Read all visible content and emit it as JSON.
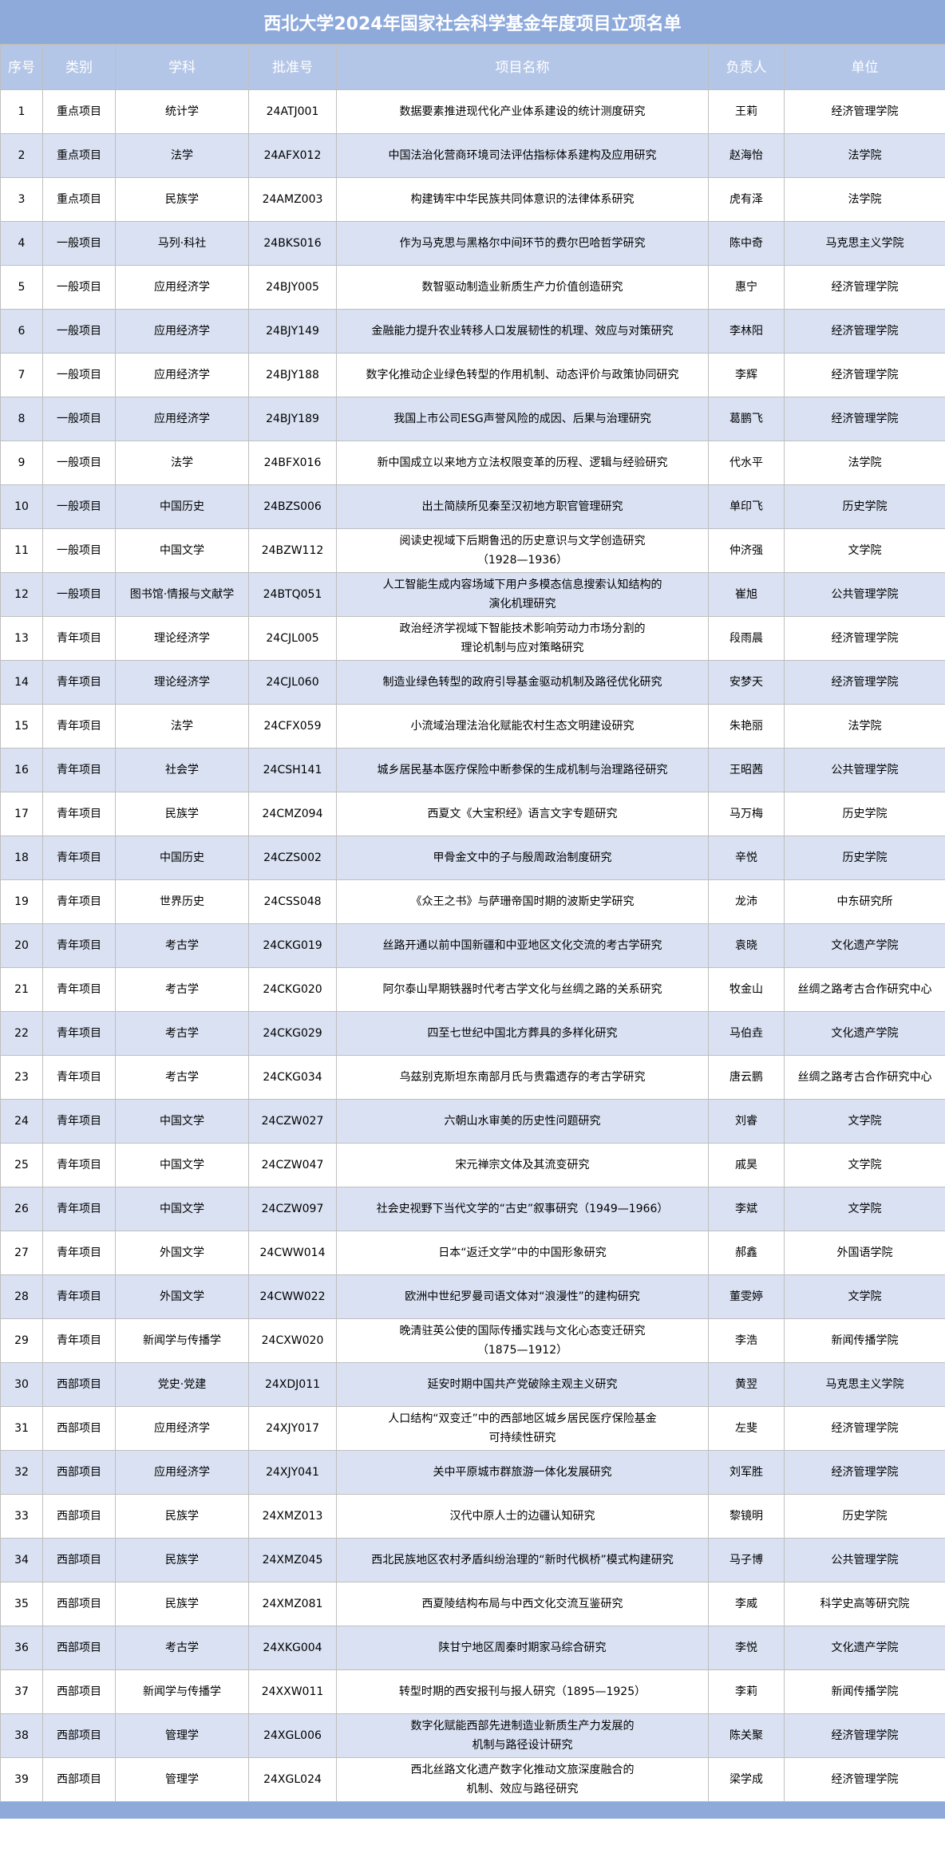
{
  "title": "西北大学2024年国家社会科学基金年度项目立项名单",
  "columns": [
    "序号",
    "类别",
    "学科",
    "批准号",
    "项目名称",
    "负责人",
    "单位"
  ],
  "colors": {
    "title_bg": "#8eaadb",
    "header_bg": "#b4c6e7",
    "alt_row_bg": "#d9e1f2",
    "border": "#bfbfbf"
  },
  "rows": [
    [
      "1",
      "重点项目",
      "统计学",
      "24ATJ001",
      "数据要素推进现代化产业体系建设的统计测度研究",
      "王莉",
      "经济管理学院"
    ],
    [
      "2",
      "重点项目",
      "法学",
      "24AFX012",
      "中国法治化营商环境司法评估指标体系建构及应用研究",
      "赵海怡",
      "法学院"
    ],
    [
      "3",
      "重点项目",
      "民族学",
      "24AMZ003",
      "构建铸牢中华民族共同体意识的法律体系研究",
      "虎有泽",
      "法学院"
    ],
    [
      "4",
      "一般项目",
      "马列·科社",
      "24BKS016",
      "作为马克思与黑格尔中间环节的费尔巴哈哲学研究",
      "陈中奇",
      "马克思主义学院"
    ],
    [
      "5",
      "一般项目",
      "应用经济学",
      "24BJY005",
      "数智驱动制造业新质生产力价值创造研究",
      "惠宁",
      "经济管理学院"
    ],
    [
      "6",
      "一般项目",
      "应用经济学",
      "24BJY149",
      "金融能力提升农业转移人口发展韧性的机理、效应与对策研究",
      "李林阳",
      "经济管理学院"
    ],
    [
      "7",
      "一般项目",
      "应用经济学",
      "24BJY188",
      "数字化推动企业绿色转型的作用机制、动态评价与政策协同研究",
      "李辉",
      "经济管理学院"
    ],
    [
      "8",
      "一般项目",
      "应用经济学",
      "24BJY189",
      "我国上市公司ESG声誉风险的成因、后果与治理研究",
      "葛鹏飞",
      "经济管理学院"
    ],
    [
      "9",
      "一般项目",
      "法学",
      "24BFX016",
      "新中国成立以来地方立法权限变革的历程、逻辑与经验研究",
      "代水平",
      "法学院"
    ],
    [
      "10",
      "一般项目",
      "中国历史",
      "24BZS006",
      "出土简牍所见秦至汉初地方职官管理研究",
      "单印飞",
      "历史学院"
    ],
    [
      "11",
      "一般项目",
      "中国文学",
      "24BZW112",
      "阅读史视域下后期鲁迅的历史意识与文学创造研究\n（1928—1936）",
      "仲济强",
      "文学院"
    ],
    [
      "12",
      "一般项目",
      "图书馆·情报与文献学",
      "24BTQ051",
      "人工智能生成内容场域下用户多模态信息搜索认知结构的\n演化机理研究",
      "崔旭",
      "公共管理学院"
    ],
    [
      "13",
      "青年项目",
      "理论经济学",
      "24CJL005",
      "政治经济学视域下智能技术影响劳动力市场分割的\n理论机制与应对策略研究",
      "段雨晨",
      "经济管理学院"
    ],
    [
      "14",
      "青年项目",
      "理论经济学",
      "24CJL060",
      "制造业绿色转型的政府引导基金驱动机制及路径优化研究",
      "安梦天",
      "经济管理学院"
    ],
    [
      "15",
      "青年项目",
      "法学",
      "24CFX059",
      "小流域治理法治化赋能农村生态文明建设研究",
      "朱艳丽",
      "法学院"
    ],
    [
      "16",
      "青年项目",
      "社会学",
      "24CSH141",
      "城乡居民基本医疗保险中断参保的生成机制与治理路径研究",
      "王昭茜",
      "公共管理学院"
    ],
    [
      "17",
      "青年项目",
      "民族学",
      "24CMZ094",
      "西夏文《大宝积经》语言文字专题研究",
      "马万梅",
      "历史学院"
    ],
    [
      "18",
      "青年项目",
      "中国历史",
      "24CZS002",
      "甲骨金文中的子与殷周政治制度研究",
      "辛悦",
      "历史学院"
    ],
    [
      "19",
      "青年项目",
      "世界历史",
      "24CSS048",
      "《众王之书》与萨珊帝国时期的波斯史学研究",
      "龙沛",
      "中东研究所"
    ],
    [
      "20",
      "青年项目",
      "考古学",
      "24CKG019",
      "丝路开通以前中国新疆和中亚地区文化交流的考古学研究",
      "袁晓",
      "文化遗产学院"
    ],
    [
      "21",
      "青年项目",
      "考古学",
      "24CKG020",
      "阿尔泰山早期铁器时代考古学文化与丝绸之路的关系研究",
      "牧金山",
      "丝绸之路考古合作研究中心"
    ],
    [
      "22",
      "青年项目",
      "考古学",
      "24CKG029",
      "四至七世纪中国北方葬具的多样化研究",
      "马伯垚",
      "文化遗产学院"
    ],
    [
      "23",
      "青年项目",
      "考古学",
      "24CKG034",
      "乌兹别克斯坦东南部月氏与贵霜遗存的考古学研究",
      "唐云鹏",
      "丝绸之路考古合作研究中心"
    ],
    [
      "24",
      "青年项目",
      "中国文学",
      "24CZW027",
      "六朝山水审美的历史性问题研究",
      "刘睿",
      "文学院"
    ],
    [
      "25",
      "青年项目",
      "中国文学",
      "24CZW047",
      "宋元禅宗文体及其流变研究",
      "戚昊",
      "文学院"
    ],
    [
      "26",
      "青年项目",
      "中国文学",
      "24CZW097",
      "社会史视野下当代文学的“古史”叙事研究（1949—1966）",
      "李斌",
      "文学院"
    ],
    [
      "27",
      "青年项目",
      "外国文学",
      "24CWW014",
      "日本“返迁文学”中的中国形象研究",
      "郝鑫",
      "外国语学院"
    ],
    [
      "28",
      "青年项目",
      "外国文学",
      "24CWW022",
      "欧洲中世纪罗曼司语文体对“浪漫性”的建构研究",
      "董雯婷",
      "文学院"
    ],
    [
      "29",
      "青年项目",
      "新闻学与传播学",
      "24CXW020",
      "晚清驻英公使的国际传播实践与文化心态变迁研究\n（1875—1912）",
      "李浩",
      "新闻传播学院"
    ],
    [
      "30",
      "西部项目",
      "党史·党建",
      "24XDJ011",
      "延安时期中国共产党破除主观主义研究",
      "黄翌",
      "马克思主义学院"
    ],
    [
      "31",
      "西部项目",
      "应用经济学",
      "24XJY017",
      "人口结构“双变迁”中的西部地区城乡居民医疗保险基金\n可持续性研究",
      "左斐",
      "经济管理学院"
    ],
    [
      "32",
      "西部项目",
      "应用经济学",
      "24XJY041",
      "关中平原城市群旅游一体化发展研究",
      "刘军胜",
      "经济管理学院"
    ],
    [
      "33",
      "西部项目",
      "民族学",
      "24XMZ013",
      "汉代中原人士的边疆认知研究",
      "黎镜明",
      "历史学院"
    ],
    [
      "34",
      "西部项目",
      "民族学",
      "24XMZ045",
      "西北民族地区农村矛盾纠纷治理的“新时代枫桥”模式构建研究",
      "马子博",
      "公共管理学院"
    ],
    [
      "35",
      "西部项目",
      "民族学",
      "24XMZ081",
      "西夏陵结构布局与中西文化交流互鉴研究",
      "李威",
      "科学史高等研究院"
    ],
    [
      "36",
      "西部项目",
      "考古学",
      "24XKG004",
      "陕甘宁地区周秦时期家马综合研究",
      "李悦",
      "文化遗产学院"
    ],
    [
      "37",
      "西部项目",
      "新闻学与传播学",
      "24XXW011",
      "转型时期的西安报刊与报人研究（1895—1925）",
      "李莉",
      "新闻传播学院"
    ],
    [
      "38",
      "西部项目",
      "管理学",
      "24XGL006",
      "数字化赋能西部先进制造业新质生产力发展的\n机制与路径设计研究",
      "陈关聚",
      "经济管理学院"
    ],
    [
      "39",
      "西部项目",
      "管理学",
      "24XGL024",
      "西北丝路文化遗产数字化推动文旅深度融合的\n机制、效应与路径研究",
      "梁学成",
      "经济管理学院"
    ]
  ]
}
